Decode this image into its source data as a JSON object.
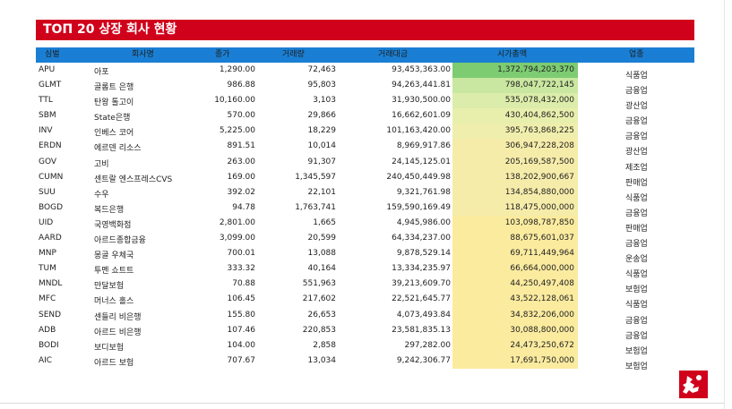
{
  "title": "TOΠ 20 상장 회사 현황",
  "headers": {
    "symbol": "심벌",
    "company": "회사명",
    "price": "종가",
    "volume": "거래량",
    "value": "거래대금",
    "market_cap": "시가총액",
    "sector": "업종"
  },
  "colors": {
    "title_bg": "#d0021b",
    "header_bg": "#1a7fd4",
    "cap_top": "#7dcc72",
    "cap_high": "#c9e7a0",
    "cap_mid": "#f3ebaa",
    "cap_low": "#fbeb9f"
  },
  "rows": [
    {
      "symbol": "APU",
      "company": "아포",
      "price": "1,290.00",
      "volume": "72,463",
      "value": "93,453,363.00",
      "market_cap": "1,372,794,203,370",
      "sector": "식품업"
    },
    {
      "symbol": "GLMT",
      "company": "골롬트 은행",
      "price": "986.88",
      "volume": "95,803",
      "value": "94,263,441.81",
      "market_cap": "798,047,722,145",
      "sector": "금융업"
    },
    {
      "symbol": "TTL",
      "company": "탄왕 톨고이",
      "price": "10,160.00",
      "volume": "3,103",
      "value": "31,930,500.00",
      "market_cap": "535,078,432,000",
      "sector": "광산업"
    },
    {
      "symbol": "SBM",
      "company": "State은행",
      "price": "570.00",
      "volume": "29,866",
      "value": "16,662,601.09",
      "market_cap": "430,404,862,500",
      "sector": "금융업"
    },
    {
      "symbol": "INV",
      "company": "인베스 코어",
      "price": "5,225.00",
      "volume": "18,229",
      "value": "101,163,420.00",
      "market_cap": "395,763,868,225",
      "sector": "금융업"
    },
    {
      "symbol": "ERDN",
      "company": "에르덴 리소스",
      "price": "891.51",
      "volume": "10,014",
      "value": "8,969,917.86",
      "market_cap": "306,947,228,208",
      "sector": "광산업"
    },
    {
      "symbol": "GOV",
      "company": "고비",
      "price": "263.00",
      "volume": "91,307",
      "value": "24,145,125.01",
      "market_cap": "205,169,587,500",
      "sector": "제조업"
    },
    {
      "symbol": "CUMN",
      "company": "센트랄 엔스프레스CVS",
      "price": "169.00",
      "volume": "1,345,597",
      "value": "240,450,449.98",
      "market_cap": "138,202,900,667",
      "sector": "판매업"
    },
    {
      "symbol": "SUU",
      "company": "수우",
      "price": "392.02",
      "volume": "22,101",
      "value": "9,321,761.98",
      "market_cap": "134,854,880,000",
      "sector": "식품업"
    },
    {
      "symbol": "BOGD",
      "company": "복드은행",
      "price": "94.78",
      "volume": "1,763,741",
      "value": "159,590,169.49",
      "market_cap": "118,475,000,000",
      "sector": "금융업"
    },
    {
      "symbol": "UID",
      "company": "국영백화점",
      "price": "2,801.00",
      "volume": "1,665",
      "value": "4,945,986.00",
      "market_cap": "103,098,787,850",
      "sector": "판매업"
    },
    {
      "symbol": "AARD",
      "company": "아르드종합금융",
      "price": "3,099.00",
      "volume": "20,599",
      "value": "64,334,237.00",
      "market_cap": "88,675,601,037",
      "sector": "금융업"
    },
    {
      "symbol": "MNP",
      "company": "몽골 우체국",
      "price": "700.01",
      "volume": "13,088",
      "value": "9,878,529.14",
      "market_cap": "69,711,449,964",
      "sector": "운송업"
    },
    {
      "symbol": "TUM",
      "company": "투멘 쇼트트",
      "price": "333.32",
      "volume": "40,164",
      "value": "13,334,235.97",
      "market_cap": "66,664,000,000",
      "sector": "식품업"
    },
    {
      "symbol": "MNDL",
      "company": "만달보험",
      "price": "70.88",
      "volume": "551,963",
      "value": "39,213,609.70",
      "market_cap": "44,250,497,408",
      "sector": "보험업"
    },
    {
      "symbol": "MFC",
      "company": "머너스 홀스",
      "price": "106.45",
      "volume": "217,602",
      "value": "22,521,645.77",
      "market_cap": "43,522,128,061",
      "sector": "식품업"
    },
    {
      "symbol": "SEND",
      "company": "센들리 비은행",
      "price": "155.80",
      "volume": "26,653",
      "value": "4,073,493.84",
      "market_cap": "34,832,206,000",
      "sector": "금융업"
    },
    {
      "symbol": "ADB",
      "company": "아르드 비은행",
      "price": "107.46",
      "volume": "220,853",
      "value": "23,581,835.13",
      "market_cap": "30,088,800,000",
      "sector": "금융업"
    },
    {
      "symbol": "BODI",
      "company": "보디보험",
      "price": "104.00",
      "volume": "2,858",
      "value": "297,282.00",
      "market_cap": "24,473,250,672",
      "sector": "보험업"
    },
    {
      "symbol": "AIC",
      "company": "아르드 보험",
      "price": "707.67",
      "volume": "13,034",
      "value": "9,242,306.77",
      "market_cap": "17,691,750,000",
      "sector": "보험업"
    }
  ]
}
